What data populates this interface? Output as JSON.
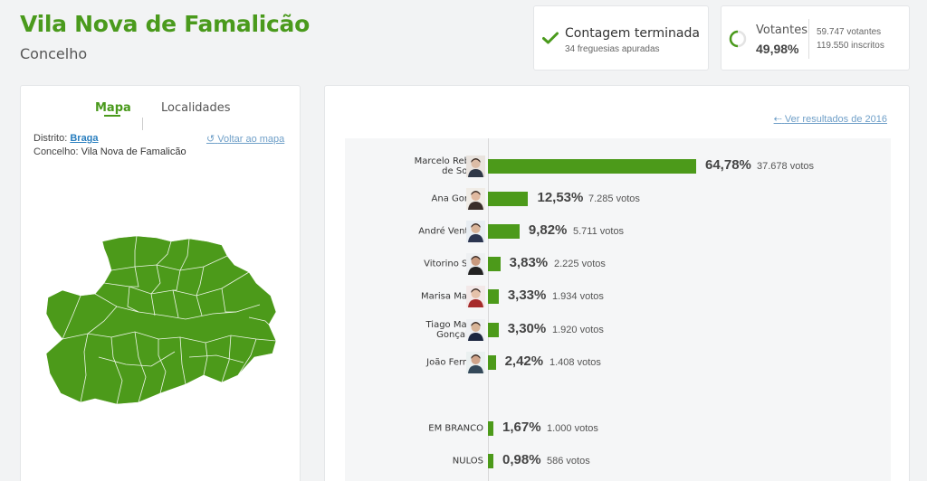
{
  "header": {
    "title": "Vila Nova de Famalicão",
    "subtitle": "Concelho"
  },
  "status": {
    "title": "Contagem terminada",
    "detail": "34 freguesias apuradas",
    "check_color": "#4a9a1c"
  },
  "turnout": {
    "label": "Votantes",
    "percent": "49,98%",
    "percent_value": 49.98,
    "voters": "59.747 votantes",
    "registered": "119.550 inscritos"
  },
  "map_panel": {
    "tabs": [
      "Mapa",
      "Localidades"
    ],
    "district_label": "Distrito:",
    "district_value": "Braga",
    "council_label": "Concelho:",
    "council_value": "Vila Nova de Famalicão",
    "back_link": "Voltar ao mapa",
    "fill_color": "#4c9a1a"
  },
  "results": {
    "prev_link": "Ver resultados de 2016",
    "bar_color": "#4c9a1a",
    "candidates": [
      {
        "name": "Marcelo Rebelo de Sousa",
        "percent": "64,78%",
        "value": 64.78,
        "votes": "37.678 votos",
        "avatar": "avatar-marcelo-icon"
      },
      {
        "name": "Ana Gomes",
        "percent": "12,53%",
        "value": 12.53,
        "votes": "7.285 votos",
        "avatar": "avatar-ana-icon"
      },
      {
        "name": "André Ventura",
        "percent": "9,82%",
        "value": 9.82,
        "votes": "5.711 votos",
        "avatar": "avatar-andre-icon"
      },
      {
        "name": "Vitorino Silva",
        "percent": "3,83%",
        "value": 3.83,
        "votes": "2.225 votos",
        "avatar": "avatar-vitorino-icon"
      },
      {
        "name": "Marisa Matias",
        "percent": "3,33%",
        "value": 3.33,
        "votes": "1.934 votos",
        "avatar": "avatar-marisa-icon"
      },
      {
        "name": "Tiago Mayan Gonçalves",
        "percent": "3,30%",
        "value": 3.3,
        "votes": "1.920 votos",
        "avatar": "avatar-tiago-icon"
      },
      {
        "name": "João Ferreira",
        "percent": "2,42%",
        "value": 2.42,
        "votes": "1.408 votos",
        "avatar": "avatar-joao-icon"
      }
    ],
    "others": [
      {
        "name": "EM BRANCO",
        "percent": "1,67%",
        "value": 1.67,
        "votes": "1.000 votos"
      },
      {
        "name": "NULOS",
        "percent": "0,98%",
        "value": 0.98,
        "votes": "586 votos"
      }
    ]
  }
}
